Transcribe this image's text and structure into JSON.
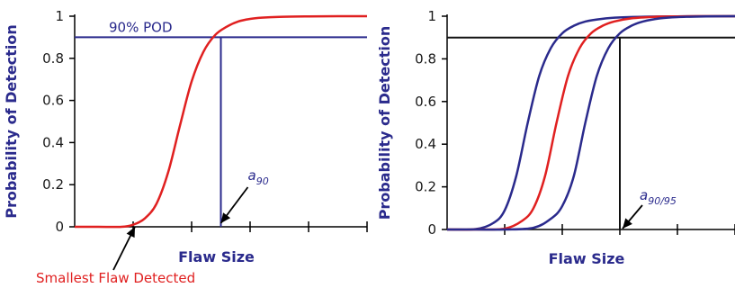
{
  "colors": {
    "blue": "#2a2a8c",
    "red": "#e02020",
    "black": "#111111"
  },
  "chart_data": [
    {
      "type": "line",
      "title": "",
      "xlabel": "Flaw Size",
      "ylabel": "Probability of Detection",
      "xlim": [
        0,
        5
      ],
      "ylim": [
        0,
        1
      ],
      "yticks": [
        0,
        0.2,
        0.4,
        0.6,
        0.8,
        1
      ],
      "ytick_labels": [
        "0",
        "0.2",
        "0.4",
        "0.6",
        "0.8",
        "1"
      ],
      "xticks": [
        1,
        2,
        3,
        4,
        5
      ],
      "grid": false,
      "series": [
        {
          "color": "#e02020",
          "x": [
            0,
            0.4,
            0.8,
            1.0,
            1.2,
            1.4,
            1.6,
            1.8,
            2.0,
            2.2,
            2.4,
            2.6,
            2.8,
            3.0,
            3.2,
            3.5,
            4.0,
            4.5,
            5.0
          ],
          "y": [
            0,
            0,
            0,
            0.01,
            0.04,
            0.11,
            0.26,
            0.48,
            0.69,
            0.83,
            0.91,
            0.95,
            0.975,
            0.987,
            0.993,
            0.997,
            0.999,
            1.0,
            1.0
          ]
        }
      ],
      "reference_lines": [
        {
          "axis": "y",
          "value": 0.9,
          "color": "#2a2a8c",
          "label": "90% POD"
        },
        {
          "axis": "x",
          "value": 2.5,
          "from": 0,
          "to": 0.9,
          "color": "#2a2a8c"
        }
      ],
      "annotations": [
        {
          "text": "a",
          "subscript": "90",
          "at_x": 2.5,
          "color": "#2a2a8c"
        },
        {
          "text": "Smallest Flaw Detected",
          "at_x": 1.0,
          "color": "#e02020"
        }
      ]
    },
    {
      "type": "line",
      "title": "",
      "xlabel": "Flaw Size",
      "ylabel": "Probability of Detection",
      "xlim": [
        0,
        5
      ],
      "ylim": [
        0,
        1
      ],
      "yticks": [
        0,
        0.2,
        0.4,
        0.6,
        0.8,
        1
      ],
      "ytick_labels": [
        "0",
        "0.2",
        "0.4",
        "0.6",
        "0.8",
        "1"
      ],
      "xticks": [
        1,
        2,
        3,
        4,
        5
      ],
      "grid": false,
      "series": [
        {
          "color": "#2a2a8c",
          "x": [
            0,
            0.5,
            0.8,
            1.0,
            1.2,
            1.4,
            1.6,
            1.8,
            2.0,
            2.2,
            2.4,
            2.7,
            3.0,
            3.5,
            4.0,
            4.5,
            5.0
          ],
          "y": [
            0,
            0.002,
            0.03,
            0.09,
            0.25,
            0.5,
            0.72,
            0.85,
            0.92,
            0.955,
            0.975,
            0.988,
            0.994,
            0.998,
            0.999,
            1.0,
            1.0
          ]
        },
        {
          "color": "#e02020",
          "x": [
            0,
            0.5,
            1.0,
            1.3,
            1.5,
            1.7,
            1.9,
            2.1,
            2.3,
            2.5,
            2.7,
            2.9,
            3.2,
            3.6,
            4.0,
            4.5,
            5.0
          ],
          "y": [
            0,
            0,
            0.004,
            0.04,
            0.1,
            0.25,
            0.5,
            0.72,
            0.85,
            0.92,
            0.955,
            0.975,
            0.99,
            0.997,
            0.999,
            1.0,
            1.0
          ]
        },
        {
          "color": "#2a2a8c",
          "x": [
            0,
            0.5,
            1.0,
            1.5,
            1.8,
            2.0,
            2.2,
            2.4,
            2.6,
            2.8,
            3.0,
            3.2,
            3.4,
            3.7,
            4.0,
            4.5,
            5.0
          ],
          "y": [
            0,
            0,
            0,
            0.008,
            0.05,
            0.11,
            0.25,
            0.5,
            0.72,
            0.85,
            0.92,
            0.955,
            0.975,
            0.99,
            0.996,
            0.999,
            1.0
          ]
        }
      ],
      "reference_lines": [
        {
          "axis": "y",
          "value": 0.9,
          "color": "#111111"
        },
        {
          "axis": "x",
          "value": 3.0,
          "from": 0,
          "to": 0.9,
          "color": "#111111"
        }
      ],
      "annotations": [
        {
          "text": "a",
          "subscript": "90/95",
          "at_x": 3.0,
          "color": "#2a2a8c"
        }
      ]
    }
  ]
}
